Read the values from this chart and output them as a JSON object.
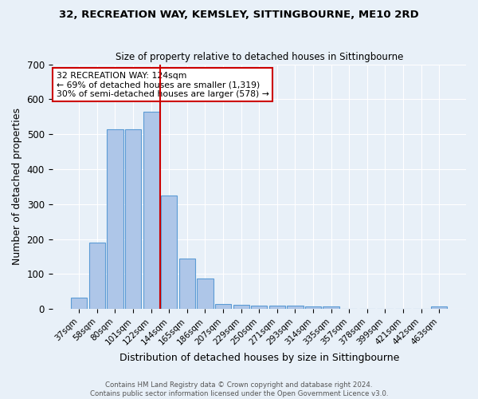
{
  "title1": "32, RECREATION WAY, KEMSLEY, SITTINGBOURNE, ME10 2RD",
  "title2": "Size of property relative to detached houses in Sittingbourne",
  "xlabel": "Distribution of detached houses by size in Sittingbourne",
  "ylabel": "Number of detached properties",
  "footer1": "Contains HM Land Registry data © Crown copyright and database right 2024.",
  "footer2": "Contains public sector information licensed under the Open Government Licence v3.0.",
  "bar_labels": [
    "37sqm",
    "58sqm",
    "80sqm",
    "101sqm",
    "122sqm",
    "144sqm",
    "165sqm",
    "186sqm",
    "207sqm",
    "229sqm",
    "250sqm",
    "271sqm",
    "293sqm",
    "314sqm",
    "335sqm",
    "357sqm",
    "378sqm",
    "399sqm",
    "421sqm",
    "442sqm",
    "463sqm"
  ],
  "bar_values": [
    33,
    190,
    515,
    515,
    565,
    325,
    145,
    87,
    15,
    12,
    9,
    10,
    10,
    6,
    6,
    0,
    0,
    0,
    0,
    0,
    8
  ],
  "bar_color": "#aec6e8",
  "bar_edge_color": "#5b9bd5",
  "bg_color": "#e8f0f8",
  "grid_color": "#ffffff",
  "vline_color": "#cc0000",
  "annotation_text": "32 RECREATION WAY: 124sqm\n← 69% of detached houses are smaller (1,319)\n30% of semi-detached houses are larger (578) →",
  "annotation_box_color": "#ffffff",
  "annotation_box_edge": "#cc0000",
  "ylim": [
    0,
    700
  ],
  "yticks": [
    0,
    100,
    200,
    300,
    400,
    500,
    600,
    700
  ]
}
